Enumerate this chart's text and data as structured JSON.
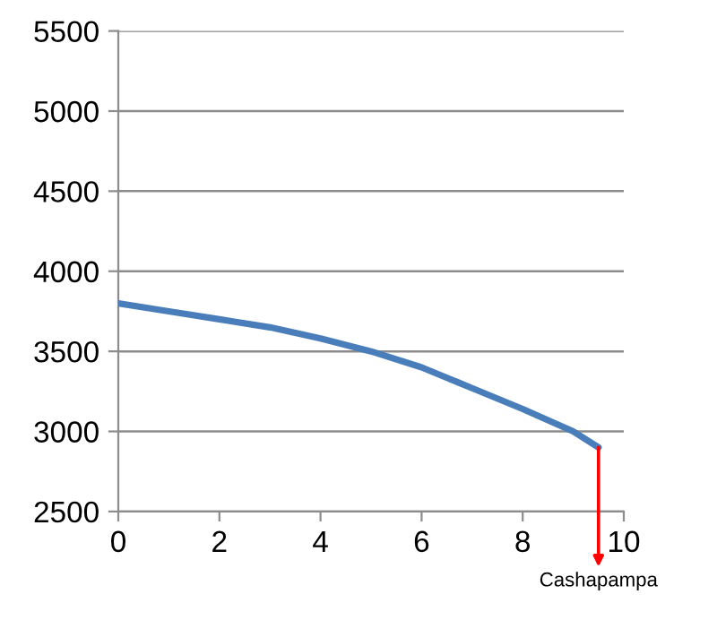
{
  "chart_data": {
    "type": "line",
    "x": [
      0,
      1,
      2,
      3,
      4,
      5,
      6,
      7,
      8,
      9,
      9.5
    ],
    "series": [
      {
        "color": "#4a7ebb",
        "values": [
          3800,
          3750,
          3700,
          3650,
          3580,
          3500,
          3400,
          3270,
          3140,
          3000,
          2900
        ]
      }
    ],
    "xlim": [
      0,
      10
    ],
    "xticks": [
      0,
      2,
      4,
      6,
      8,
      10
    ],
    "ylim": [
      2500,
      5500
    ],
    "yticks": [
      2500,
      3000,
      3500,
      4000,
      4500,
      5000,
      5500
    ],
    "grid": "y",
    "marker": "none",
    "line_style": "solid",
    "annotations": [
      {
        "text": "Cashapampa",
        "x": 9.5,
        "y": 2900
      }
    ]
  }
}
